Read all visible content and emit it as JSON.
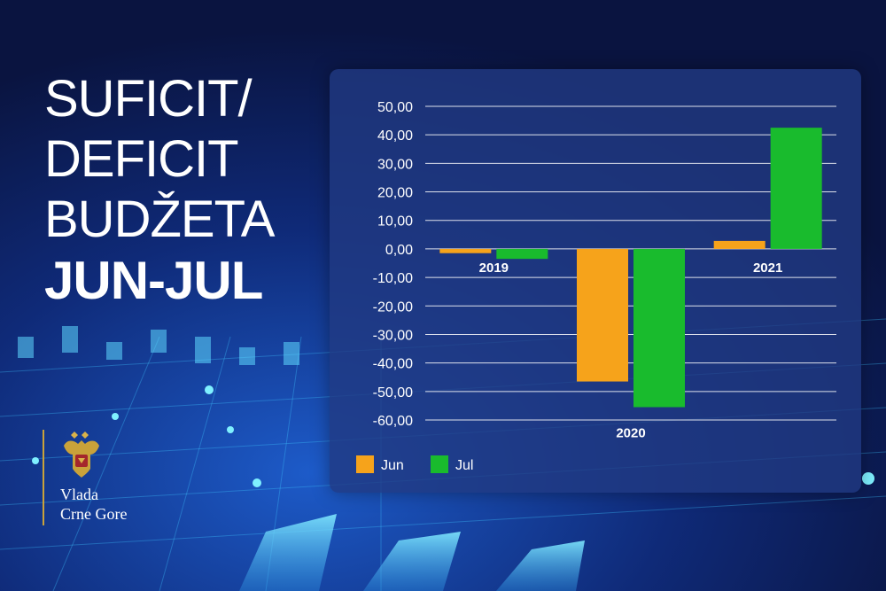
{
  "title": {
    "line1": "SUFICIT/",
    "line2": "DEFICIT",
    "line3": "BUDŽETA",
    "accent": "JUN-JUL"
  },
  "logo": {
    "line1": "Vlada",
    "line2": "Crne Gore",
    "icon": "coat-of-arms-icon"
  },
  "colors": {
    "background": "#0a1440",
    "panel": "#203a82",
    "accent": "#f6a31b",
    "series_jun": "#f6a31b",
    "series_jul": "#19bb2d",
    "text": "#ffffff"
  },
  "chart_data": {
    "type": "bar",
    "categories": [
      "2019",
      "2020",
      "2021"
    ],
    "series": [
      {
        "name": "Jun",
        "values": [
          -1.5,
          -46.5,
          2.8
        ]
      },
      {
        "name": "Jul",
        "values": [
          -3.5,
          -55.5,
          42.5
        ]
      }
    ],
    "ylim": [
      -60,
      50
    ],
    "yticks": [
      "50,00",
      "40,00",
      "30,00",
      "20,00",
      "10,00",
      "0,00",
      "-10,00",
      "-20,00",
      "-30,00",
      "-40,00",
      "-50,00",
      "-60,00"
    ],
    "ytick_values": [
      50,
      40,
      30,
      20,
      10,
      0,
      -10,
      -20,
      -30,
      -40,
      -50,
      -60
    ],
    "grid": true,
    "legend": "bottom-left"
  }
}
